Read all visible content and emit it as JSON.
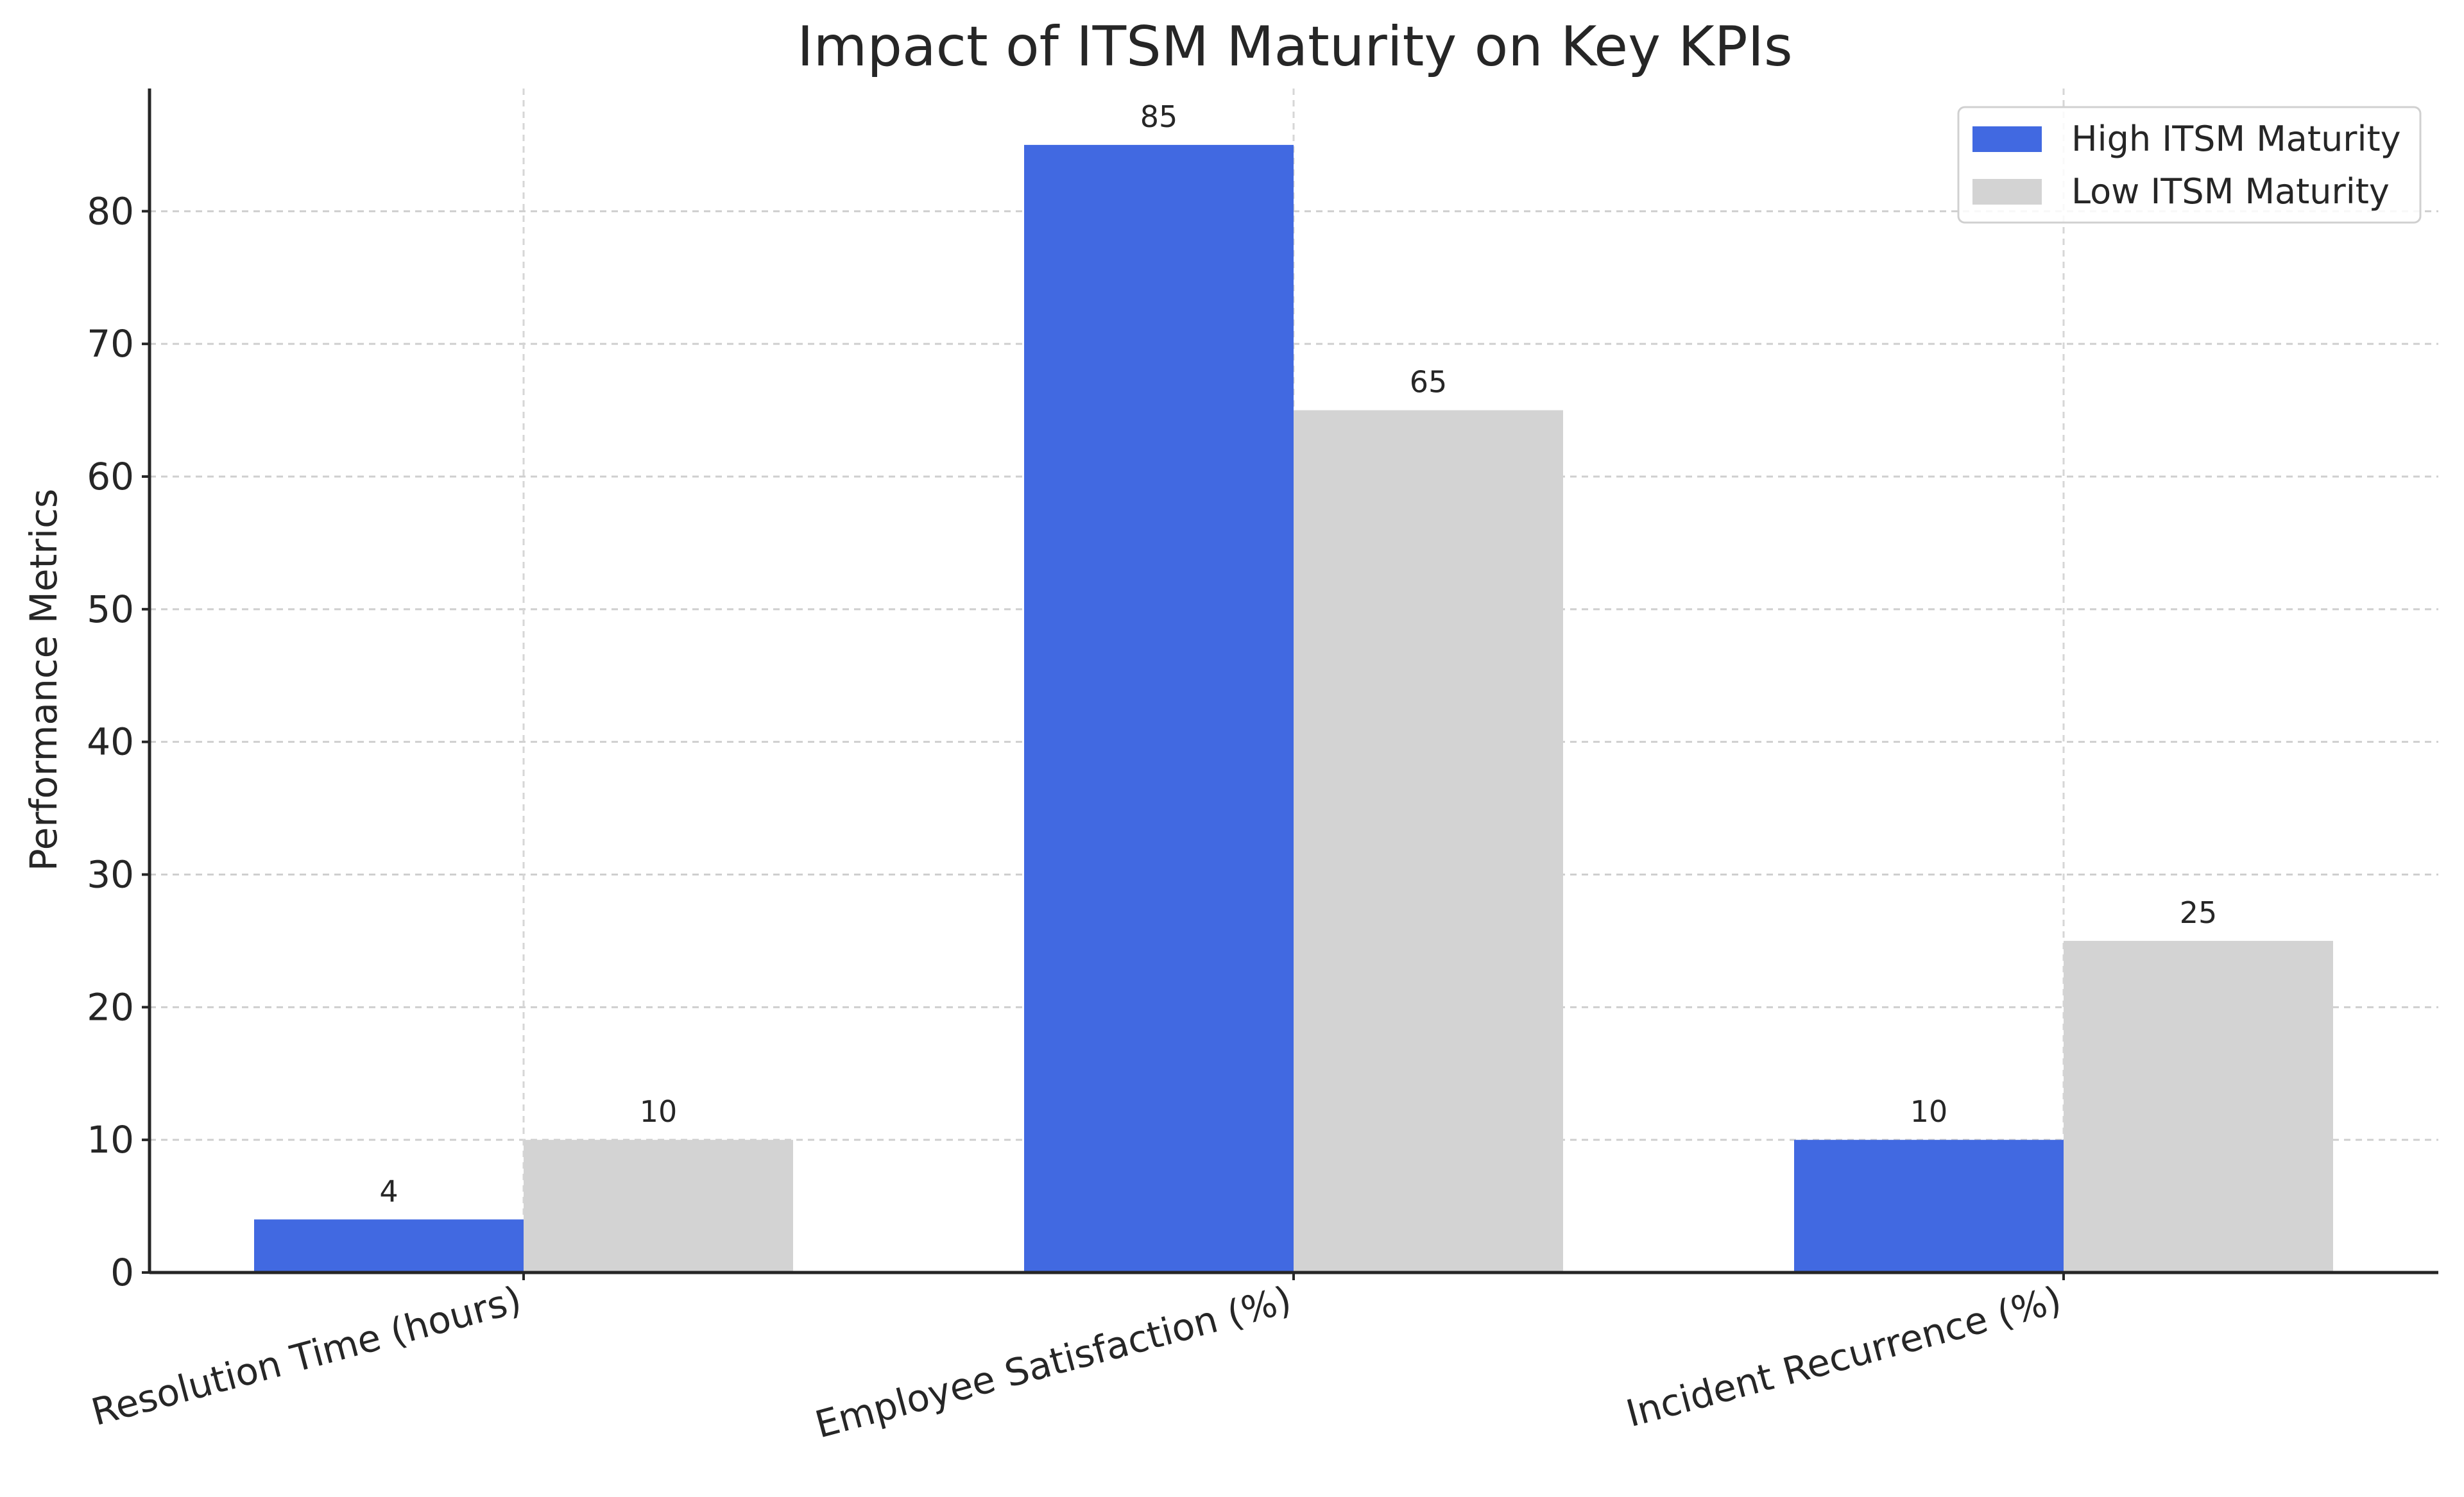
{
  "chart_data": {
    "type": "bar",
    "title": "Impact of ITSM Maturity on Key KPIs",
    "xlabel": "",
    "ylabel": "Performance Metrics",
    "categories": [
      "Resolution Time (hours)",
      "Employee Satisfaction (%)",
      "Incident Recurrence (%)"
    ],
    "series": [
      {
        "name": "High ITSM Maturity",
        "color": "#4169E1",
        "values": [
          4,
          85,
          10
        ]
      },
      {
        "name": "Low ITSM Maturity",
        "color": "#D3D3D3",
        "values": [
          10,
          65,
          25
        ]
      }
    ],
    "ylim": [
      0,
      89.25
    ],
    "yticks": [
      0,
      10,
      20,
      30,
      40,
      50,
      60,
      70,
      80
    ],
    "grid": true,
    "legend_position": "top-right",
    "data_labels": true
  }
}
